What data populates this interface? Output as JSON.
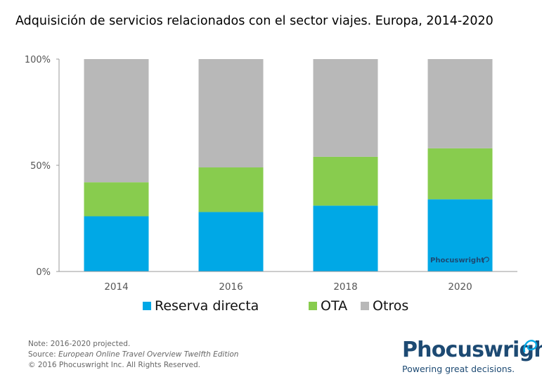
{
  "title": "Adquisición de servicios relacionados con el sector viajes. Europa, 2014-2020",
  "colors": {
    "reserva": "#00a8e6",
    "ota": "#88cc4e",
    "otros": "#b8b8b8",
    "axis": "#999999",
    "tick_text": "#555555"
  },
  "chart_data": {
    "type": "bar",
    "stacked": true,
    "percent": true,
    "title": "Adquisición de servicios relacionados con el sector viajes. Europa, 2014-2020",
    "categories": [
      "2014",
      "2016",
      "2018",
      "2020"
    ],
    "series": [
      {
        "name": "Reserva directa",
        "values": [
          26,
          28,
          31,
          34
        ]
      },
      {
        "name": "OTA",
        "values": [
          16,
          21,
          23,
          24
        ]
      },
      {
        "name": "Otros",
        "values": [
          58,
          51,
          46,
          42
        ]
      }
    ],
    "yticks": [
      "0%",
      "50%",
      "100%"
    ],
    "ylim": [
      0,
      100
    ],
    "legend_position": "bottom",
    "grid": false,
    "watermark": "Phocuswright"
  },
  "legend": [
    "Reserva directa",
    "OTA",
    "Otros"
  ],
  "notes": {
    "line1": "Note: 2016-2020 projected.",
    "source_prefix": "Source: ",
    "source_title": "European Online Travel Overview Twelfth Edition",
    "copyright": "© 2016 Phocuswright Inc. All Rights Reserved."
  },
  "logo": {
    "name": "Phocuswright",
    "tagline": "Powering great decisions."
  }
}
